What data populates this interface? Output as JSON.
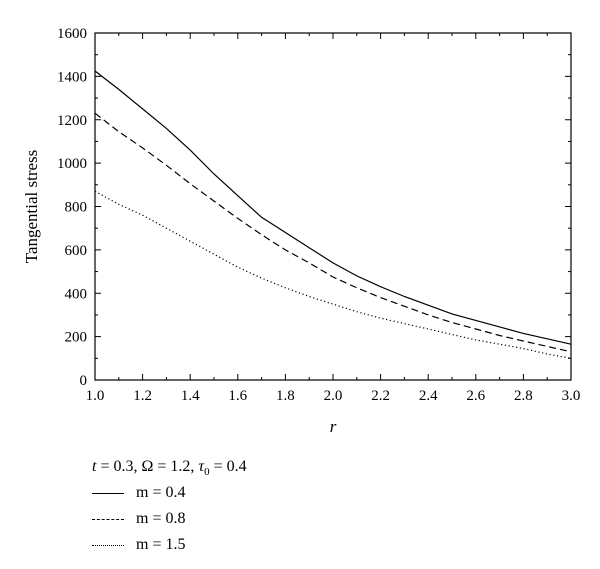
{
  "chart_data": {
    "type": "line",
    "xlabel": "r",
    "ylabel": "Tangential stress",
    "xlim": [
      1.0,
      3.0
    ],
    "ylim": [
      0,
      1600
    ],
    "x_ticks": [
      "1.0",
      "1.2",
      "1.4",
      "1.6",
      "1.8",
      "2.0",
      "2.2",
      "2.4",
      "2.6",
      "2.8",
      "3.0"
    ],
    "y_ticks": [
      "0",
      "200",
      "400",
      "600",
      "800",
      "1000",
      "1200",
      "1400",
      "1600"
    ],
    "grid": false,
    "legend_position": "below",
    "parameters": "t = 0.3, Ω = 1.2, τ0 = 0.4",
    "x": [
      1.0,
      1.1,
      1.2,
      1.3,
      1.4,
      1.5,
      1.6,
      1.7,
      1.8,
      1.9,
      2.0,
      2.1,
      2.2,
      2.3,
      2.4,
      2.5,
      2.6,
      2.7,
      2.8,
      2.9,
      3.0
    ],
    "series": [
      {
        "name": "m = 0.4",
        "style": "solid",
        "values": [
          1425,
          1340,
          1250,
          1160,
          1060,
          950,
          850,
          750,
          680,
          610,
          540,
          480,
          430,
          385,
          345,
          305,
          275,
          245,
          215,
          190,
          165
        ]
      },
      {
        "name": "m = 0.8",
        "style": "dashed",
        "values": [
          1230,
          1145,
          1070,
          990,
          905,
          825,
          745,
          670,
          600,
          540,
          475,
          425,
          380,
          340,
          300,
          265,
          235,
          205,
          180,
          155,
          130
        ]
      },
      {
        "name": "m = 1.5",
        "style": "dotted",
        "values": [
          870,
          810,
          760,
          700,
          640,
          580,
          520,
          470,
          425,
          385,
          350,
          315,
          285,
          260,
          235,
          210,
          185,
          165,
          145,
          120,
          100
        ]
      }
    ]
  },
  "legend": {
    "params_text": "t = 0.3, Ω = 1.2, τ0 = 0.4",
    "entries": [
      "m = 0.4",
      "m = 0.8",
      "m = 1.5"
    ]
  }
}
